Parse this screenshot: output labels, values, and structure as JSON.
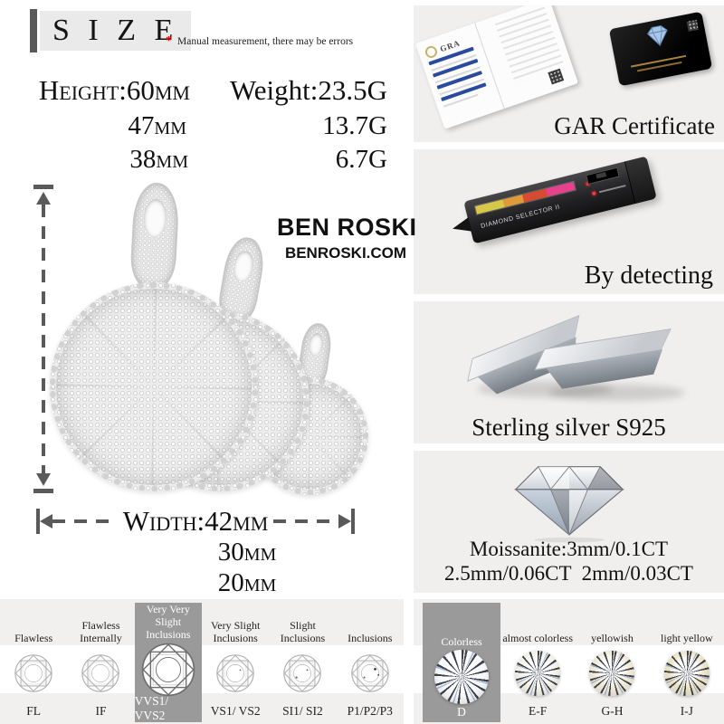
{
  "title": {
    "text": "S I Z E",
    "star": "*",
    "note": "Manual measurement, there may be errors"
  },
  "specs": {
    "height": {
      "main": "Height:60mm",
      "rows": [
        "47mm",
        "38mm"
      ]
    },
    "weight": {
      "main": "Weight:23.5G",
      "rows": [
        "13.7G",
        "6.7G"
      ]
    },
    "width": {
      "main": "Width:42mm",
      "rows": [
        "30mm",
        "20mm"
      ]
    }
  },
  "brand": {
    "name": "BEN ROSKI",
    "site": "BENROSKI.COM"
  },
  "panels": {
    "certificate": {
      "caption": "GAR Certificate",
      "cert_label": "GRA"
    },
    "detector": {
      "caption": "By detecting",
      "device_label": "DIAMOND SELECTOR II"
    },
    "silver": {
      "caption": "Sterling silver S925"
    },
    "moissanite": {
      "line1": "Moissanite:3mm/0.1CT",
      "line2": "2.5mm/0.06CT  2mm/0.03CT"
    }
  },
  "clarity": {
    "items": [
      {
        "label": "Flawless",
        "grade": "FL",
        "dots": 0,
        "highlighted": false
      },
      {
        "label": "Flawless Internally",
        "grade": "IF",
        "dots": 0,
        "highlighted": false
      },
      {
        "label": "Very Very Slight Inclusions",
        "grade": "VVS1/ VVS2",
        "dots": 0,
        "highlighted": true
      },
      {
        "label": "Very Slight Inclusions",
        "grade": "VS1/ VS2",
        "dots": 1,
        "highlighted": false
      },
      {
        "label": "Slight Inclusions",
        "grade": "SI1/ SI2",
        "dots": 2,
        "highlighted": false
      },
      {
        "label": "Inclusions",
        "grade": "P1/P2/P3",
        "dots": 3,
        "highlighted": false
      }
    ]
  },
  "color": {
    "items": [
      {
        "label": "Colorless",
        "grade": "D",
        "tint": "#f5f7fa",
        "highlighted": true
      },
      {
        "label": "almost colorless",
        "grade": "E-F",
        "tint": "#f2f0e6",
        "highlighted": false
      },
      {
        "label": "yellowish",
        "grade": "G-H",
        "tint": "#eee8d5",
        "highlighted": false
      },
      {
        "label": "light yellow",
        "grade": "I-J",
        "tint": "#eae1c4",
        "highlighted": false
      }
    ]
  },
  "colors": {
    "accent_red": "#e60000",
    "highlight_gray": "#9a9a9a",
    "panel_gray": "#f0efee",
    "arrow_gray": "#5a5a5a"
  }
}
